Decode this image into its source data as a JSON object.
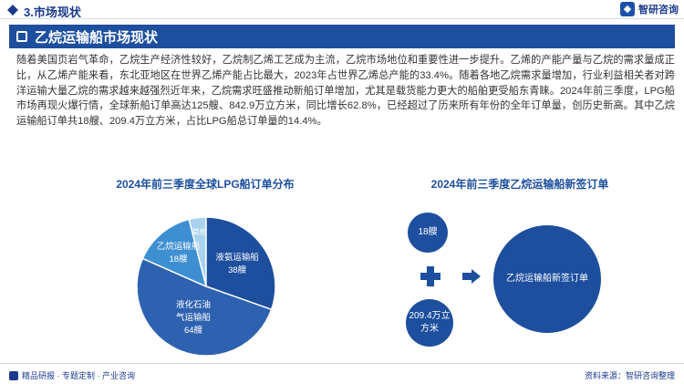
{
  "header": {
    "section_title": "3.市场现状",
    "logo_text": "智研咨询"
  },
  "banner": {
    "title": "乙烷运输船市场现状"
  },
  "paragraph": "随着美国页岩气革命，乙烷生产经济性较好，乙烷制乙烯工艺成为主流，乙烷市场地位和重要性进一步提升。乙烯的产能产量与乙烷的需求量成正比，从乙烯产能来看，东北亚地区在世界乙烯产能占比最大，2023年占世界乙烯总产能的33.4%。随着各地乙烷需求量增加，行业利益相关者对跨洋运输大量乙烷的需求越来越强烈近年来，乙烷需求旺盛推动新船订单增加，尤其是载货能力更大的船舶更受船东青睐。2024年前三季度，LPG船市场再现火爆行情，全球新船订单高达125艘、842.9万立方米，同比增长62.8%，已经超过了历来所有年份的全年订单量，创历史新高。其中乙烷运输船订单共18艘、209.4万立方米，占比LPG船总订单量的14.4%。",
  "chart_data": [
    {
      "type": "pie",
      "title": "2024年前三季度全球LPG船订单分布",
      "categories": [
        "液氨运输船",
        "液化石油气运输船",
        "乙烷运输船",
        "其他"
      ],
      "values": [
        38,
        64,
        18,
        5
      ],
      "units": "艘",
      "value_labels": [
        "38艘",
        "64艘",
        "18艘",
        ""
      ],
      "colors": [
        "#1d4f9e",
        "#2e62b0",
        "#3d8fd1",
        "#a9d2ef"
      ]
    }
  ],
  "right_panel": {
    "title": "2024年前三季度乙烷运输船新签订单",
    "ships": "18艘",
    "volume": "209.4万立方米",
    "result": "乙烷运输船新签订单"
  },
  "footer": {
    "left": "精品研报 · 专题定制 · 产业咨询",
    "right": "资料来源：智研咨询整理"
  }
}
